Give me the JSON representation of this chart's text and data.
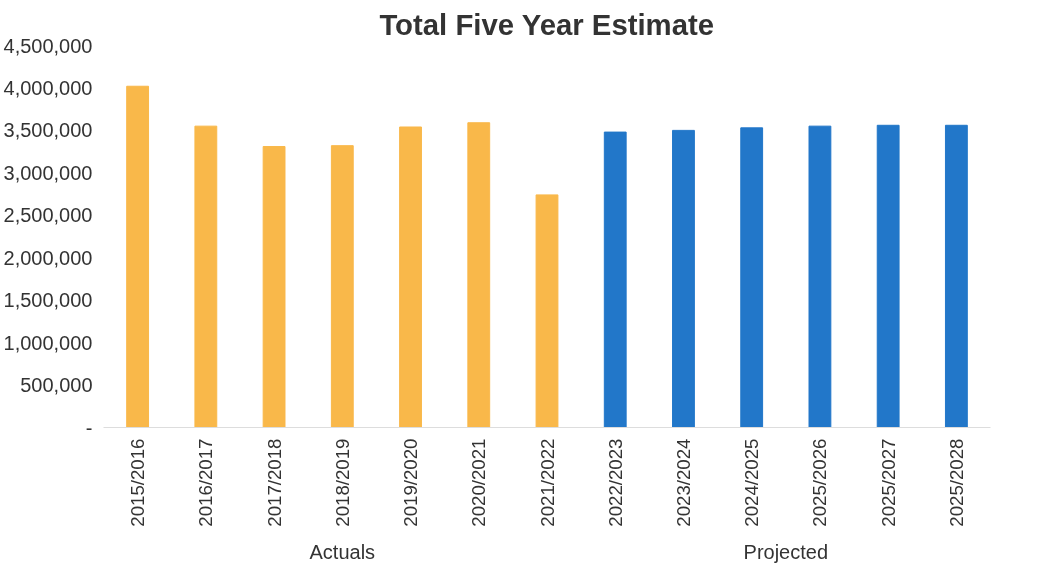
{
  "chart_data": {
    "type": "bar",
    "title": "Total Five Year Estimate",
    "categories": [
      "2015/2016",
      "2016/2017",
      "2017/2018",
      "2018/2019",
      "2019/2020",
      "2020/2021",
      "2021/2022",
      "2022/2023",
      "2023/2024",
      "2024/2025",
      "2025/2026",
      "2025/2027",
      "2025/2028"
    ],
    "series": [
      {
        "color": "#f9b84a",
        "values": [
          4020000,
          3550000,
          3310000,
          3320000,
          3540000,
          3590000,
          2740000,
          null,
          null,
          null,
          null,
          null,
          null
        ]
      },
      {
        "color": "#2277c9",
        "values": [
          null,
          null,
          null,
          null,
          null,
          null,
          null,
          3480000,
          3500000,
          3530000,
          3550000,
          3560000,
          3560000
        ]
      }
    ],
    "annotations": [
      "Actuals",
      "Projected"
    ],
    "ylim": [
      0,
      4500000
    ],
    "yticks": [
      {
        "value": 0,
        "label": "-"
      },
      {
        "value": 500000,
        "label": "500,000"
      },
      {
        "value": 1000000,
        "label": "1,000,000"
      },
      {
        "value": 1500000,
        "label": "1,500,000"
      },
      {
        "value": 2000000,
        "label": "2,000,000"
      },
      {
        "value": 2500000,
        "label": "2,500,000"
      },
      {
        "value": 3000000,
        "label": "3,000,000"
      },
      {
        "value": 3500000,
        "label": "3,500,000"
      },
      {
        "value": 4000000,
        "label": "4,000,000"
      },
      {
        "value": 4500000,
        "label": "4,500,000"
      }
    ],
    "grid": false
  }
}
